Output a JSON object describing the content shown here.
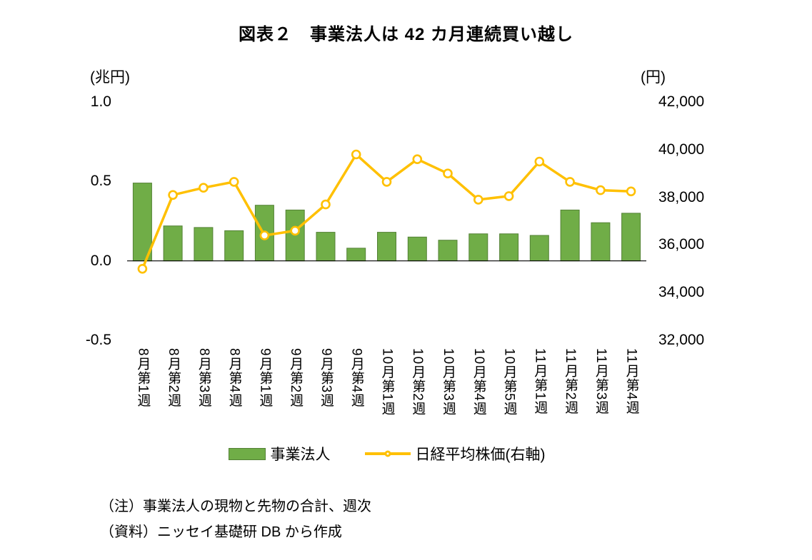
{
  "title": "図表２　事業法人は 42 カ月連続買い越し",
  "axes": {
    "left": {
      "unit": "(兆円)",
      "ticks": [
        {
          "label": "1.0",
          "value": 1.0
        },
        {
          "label": "0.5",
          "value": 0.5
        },
        {
          "label": "0.0",
          "value": 0.0
        },
        {
          "label": "-0.5",
          "value": -0.5
        }
      ]
    },
    "right": {
      "unit": "(円)",
      "ticks": [
        {
          "label": "42,000",
          "value": 42000
        },
        {
          "label": "40,000",
          "value": 40000
        },
        {
          "label": "38,000",
          "value": 38000
        },
        {
          "label": "36,000",
          "value": 36000
        },
        {
          "label": "34,000",
          "value": 34000
        },
        {
          "label": "32,000",
          "value": 32000
        }
      ]
    }
  },
  "legend": {
    "bar_label": "事業法人",
    "line_label": "日経平均株価(右軸)"
  },
  "notes": {
    "line1": "（注）事業法人の現物と先物の合計、週次",
    "line2": "（資料）ニッセイ基礎研 DB から作成"
  },
  "colors": {
    "bar_fill": "#70AD47",
    "bar_border": "#538135",
    "line": "#FFC000",
    "marker_fill": "#FFFFFF",
    "axis_line": "#000000"
  },
  "chart_data": {
    "type": "combo-bar-line",
    "categories": [
      "8月第1週",
      "8月第2週",
      "8月第3週",
      "8月第4週",
      "9月第1週",
      "9月第2週",
      "9月第3週",
      "9月第4週",
      "10月第1週",
      "10月第2週",
      "10月第3週",
      "10月第4週",
      "10月第5週",
      "11月第1週",
      "11月第2週",
      "11月第3週",
      "11月第4週"
    ],
    "series": [
      {
        "name": "事業法人",
        "type": "bar",
        "axis": "left",
        "unit": "兆円",
        "values": [
          0.49,
          0.22,
          0.21,
          0.19,
          0.35,
          0.32,
          0.18,
          0.08,
          0.18,
          0.15,
          0.13,
          0.17,
          0.17,
          0.16,
          0.32,
          0.24,
          0.3
        ]
      },
      {
        "name": "日経平均株価(右軸)",
        "type": "line",
        "axis": "right",
        "unit": "円",
        "values": [
          35000,
          38100,
          38400,
          38650,
          36400,
          36600,
          37700,
          39800,
          38650,
          39600,
          39000,
          37900,
          38050,
          39500,
          38650,
          38300,
          38250
        ]
      }
    ],
    "left_ylim": [
      -0.5,
      1.0
    ],
    "right_ylim": [
      32000,
      42000
    ],
    "grid": false,
    "legend_position": "bottom"
  }
}
